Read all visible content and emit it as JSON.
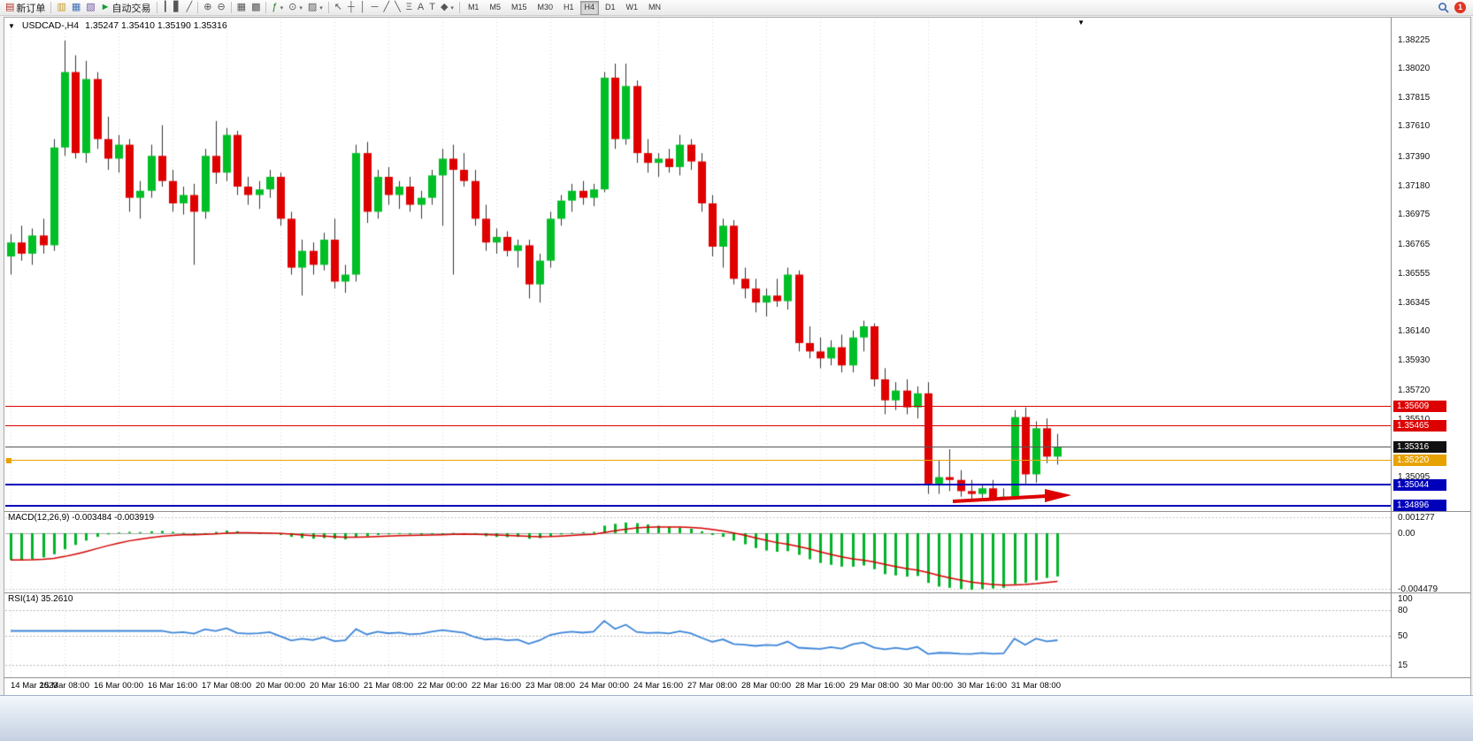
{
  "toolbar": {
    "groups": [
      {
        "items": [
          {
            "name": "new-order-button",
            "glyph": "▤",
            "color": "#b03020",
            "label": "新订单"
          }
        ]
      },
      {
        "items": [
          {
            "name": "charts-icon",
            "glyph": "▥",
            "color": "#c89a1e"
          },
          {
            "name": "market-watch-icon",
            "glyph": "▦",
            "color": "#3f6db4"
          },
          {
            "name": "navigator-icon",
            "glyph": "▧",
            "color": "#6f55a0"
          },
          {
            "name": "autotrading-button",
            "glyph": "►",
            "color": "#149a32",
            "label": "自动交易"
          }
        ]
      },
      {
        "items": [
          {
            "name": "bar-chart-icon",
            "glyph": "┃"
          },
          {
            "name": "candlestick-chart-icon",
            "glyph": "▋"
          },
          {
            "name": "line-chart-icon",
            "glyph": "╱"
          }
        ]
      },
      {
        "items": [
          {
            "name": "zoom-in-icon",
            "glyph": "⊕"
          },
          {
            "name": "zoom-out-icon",
            "glyph": "⊖"
          }
        ]
      },
      {
        "items": [
          {
            "name": "tile-windows-icon",
            "glyph": "▦"
          },
          {
            "name": "cascade-windows-icon",
            "glyph": "▩"
          }
        ]
      },
      {
        "items": [
          {
            "name": "indicators-button",
            "glyph": "ƒ",
            "color": "#1a7a1a",
            "dropdown": true
          },
          {
            "name": "periods-button",
            "glyph": "⊙",
            "dropdown": true
          },
          {
            "name": "templates-button",
            "glyph": "▨",
            "dropdown": true
          }
        ]
      },
      {
        "items": [
          {
            "name": "cursor-tool-icon",
            "glyph": "↖"
          },
          {
            "name": "crosshair-tool-icon",
            "glyph": "┼"
          },
          {
            "name": "vertical-line-tool-icon",
            "glyph": "│"
          },
          {
            "name": "horizontal-line-tool-icon",
            "glyph": "─"
          },
          {
            "name": "trendline-tool-icon",
            "glyph": "╱"
          },
          {
            "name": "channel-tool-icon",
            "glyph": "╲"
          },
          {
            "name": "fibonacci-tool-icon",
            "glyph": "Ξ"
          },
          {
            "name": "text-tool-icon",
            "glyph": "A"
          },
          {
            "name": "label-tool-icon",
            "glyph": "T"
          },
          {
            "name": "shapes-tool-button",
            "glyph": "◆",
            "dropdown": true
          }
        ]
      }
    ],
    "timeframes": {
      "items": [
        "M1",
        "M5",
        "M15",
        "M30",
        "H1",
        "H4",
        "D1",
        "W1",
        "MN"
      ],
      "active": "H4"
    },
    "right_items": [
      {
        "name": "search-icon"
      },
      {
        "name": "community-notification-badge",
        "label": "1",
        "color": "#e03424"
      }
    ]
  },
  "chart": {
    "symbol_period": "USDCAD-,H4",
    "ohlc": "1.35247 1.35410 1.35190 1.35316",
    "markers": {
      "one_click": "▼",
      "shift": "▼"
    }
  },
  "indicators": {
    "macd": {
      "label": "MACD(12,26,9) -0.003484 -0.003919"
    },
    "rsi": {
      "label": "RSI(14) 35.2610"
    }
  },
  "chart_data": {
    "type": "candlestick",
    "symbol": "USDCAD",
    "timeframe": "H4",
    "ohlc_display": [
      1.35247,
      1.3541,
      1.3519,
      1.35316
    ],
    "colors": {
      "up": "#00bf26",
      "down": "#df0000",
      "wick": "#333333",
      "grid": "#d9d9d9",
      "bg": "#ffffff"
    },
    "price_axis": {
      "ylim": [
        1.34857,
        1.38383
      ],
      "ticks": [
        1.38225,
        1.3802,
        1.37815,
        1.3761,
        1.3739,
        1.3718,
        1.36975,
        1.36765,
        1.36555,
        1.36345,
        1.3614,
        1.3593,
        1.3572,
        1.3551,
        1.35095
      ]
    },
    "levels": [
      {
        "price": 1.35609,
        "label": "1.35609",
        "color": "#dd0000",
        "badge": "#dd0000",
        "thick": 1
      },
      {
        "price": 1.35465,
        "label": "1.35465",
        "color": "#dd0000",
        "badge": "#dd0000",
        "thick": 1
      },
      {
        "price": 1.35316,
        "label": "1.35316",
        "color": "#555555",
        "badge": "#111111",
        "thick": 1
      },
      {
        "price": 1.3522,
        "label": "1.35220",
        "color": "#e8a200",
        "badge": "#e8a200",
        "thick": 1,
        "marker": true
      },
      {
        "price": 1.35044,
        "label": "1.35044",
        "color": "#0000bb",
        "badge": "#0000bb",
        "thick": 2
      },
      {
        "price": 1.34896,
        "label": "1.34896",
        "color": "#0000bb",
        "badge": "#0000bb",
        "thick": 2
      }
    ],
    "arrow": {
      "color": "#dd0000"
    },
    "time_labels": [
      "14 Mar 2023",
      "15 Mar 08:00",
      "16 Mar 00:00",
      "16 Mar 16:00",
      "17 Mar 08:00",
      "20 Mar 00:00",
      "20 Mar 16:00",
      "21 Mar 08:00",
      "22 Mar 00:00",
      "22 Mar 16:00",
      "23 Mar 08:00",
      "24 Mar 00:00",
      "24 Mar 16:00",
      "27 Mar 08:00",
      "28 Mar 00:00",
      "28 Mar 16:00",
      "29 Mar 08:00",
      "30 Mar 00:00",
      "30 Mar 16:00",
      "31 Mar 08:00"
    ],
    "candles": [
      [
        1.3668,
        1.3684,
        1.3655,
        1.3678
      ],
      [
        1.3678,
        1.369,
        1.3665,
        1.367
      ],
      [
        1.367,
        1.3688,
        1.3662,
        1.3683
      ],
      [
        1.3683,
        1.3695,
        1.367,
        1.3676
      ],
      [
        1.3676,
        1.3752,
        1.3672,
        1.3746
      ],
      [
        1.3746,
        1.38225,
        1.374,
        1.38
      ],
      [
        1.38,
        1.3812,
        1.3738,
        1.3742
      ],
      [
        1.3742,
        1.3808,
        1.3735,
        1.3795
      ],
      [
        1.3795,
        1.38,
        1.3745,
        1.3752
      ],
      [
        1.3752,
        1.3768,
        1.373,
        1.3738
      ],
      [
        1.3738,
        1.3755,
        1.3728,
        1.3748
      ],
      [
        1.3748,
        1.3752,
        1.37,
        1.371
      ],
      [
        1.371,
        1.3722,
        1.3695,
        1.3715
      ],
      [
        1.3715,
        1.3748,
        1.371,
        1.374
      ],
      [
        1.374,
        1.3762,
        1.3718,
        1.3722
      ],
      [
        1.3722,
        1.373,
        1.37,
        1.3706
      ],
      [
        1.3706,
        1.3718,
        1.3698,
        1.3712
      ],
      [
        1.3712,
        1.372,
        1.3662,
        1.37
      ],
      [
        1.37,
        1.3745,
        1.3695,
        1.374
      ],
      [
        1.374,
        1.3765,
        1.372,
        1.3728
      ],
      [
        1.3728,
        1.376,
        1.3722,
        1.3755
      ],
      [
        1.3755,
        1.3758,
        1.3712,
        1.3718
      ],
      [
        1.3718,
        1.3725,
        1.3705,
        1.3712
      ],
      [
        1.3712,
        1.3722,
        1.3702,
        1.3716
      ],
      [
        1.3716,
        1.373,
        1.371,
        1.3725
      ],
      [
        1.3725,
        1.3728,
        1.369,
        1.3695
      ],
      [
        1.3695,
        1.37,
        1.3655,
        1.366
      ],
      [
        1.366,
        1.368,
        1.364,
        1.3672
      ],
      [
        1.3672,
        1.3678,
        1.3655,
        1.3662
      ],
      [
        1.3662,
        1.3685,
        1.3658,
        1.368
      ],
      [
        1.368,
        1.3695,
        1.3645,
        1.365
      ],
      [
        1.365,
        1.3662,
        1.3642,
        1.3655
      ],
      [
        1.3655,
        1.3748,
        1.365,
        1.3742
      ],
      [
        1.3742,
        1.375,
        1.3692,
        1.37
      ],
      [
        1.37,
        1.373,
        1.3695,
        1.3725
      ],
      [
        1.3725,
        1.3732,
        1.3705,
        1.3712
      ],
      [
        1.3712,
        1.3722,
        1.3702,
        1.3718
      ],
      [
        1.3718,
        1.3725,
        1.37,
        1.3705
      ],
      [
        1.3705,
        1.3715,
        1.3695,
        1.371
      ],
      [
        1.371,
        1.373,
        1.3705,
        1.3726
      ],
      [
        1.3726,
        1.3745,
        1.369,
        1.3738
      ],
      [
        1.3738,
        1.3748,
        1.3655,
        1.373
      ],
      [
        1.373,
        1.3742,
        1.3718,
        1.3722
      ],
      [
        1.3722,
        1.373,
        1.369,
        1.3695
      ],
      [
        1.3695,
        1.3705,
        1.3672,
        1.3678
      ],
      [
        1.3678,
        1.3688,
        1.367,
        1.3682
      ],
      [
        1.3682,
        1.3686,
        1.3668,
        1.3672
      ],
      [
        1.3672,
        1.368,
        1.366,
        1.3676
      ],
      [
        1.3676,
        1.368,
        1.3638,
        1.3648
      ],
      [
        1.3648,
        1.367,
        1.3635,
        1.3665
      ],
      [
        1.3665,
        1.37,
        1.366,
        1.3695
      ],
      [
        1.3695,
        1.3712,
        1.369,
        1.3708
      ],
      [
        1.3708,
        1.372,
        1.37,
        1.3715
      ],
      [
        1.3715,
        1.3722,
        1.3705,
        1.371
      ],
      [
        1.371,
        1.372,
        1.3704,
        1.3716
      ],
      [
        1.3716,
        1.38,
        1.3714,
        1.3796
      ],
      [
        1.3796,
        1.3806,
        1.3745,
        1.3752
      ],
      [
        1.3752,
        1.3806,
        1.3748,
        1.379
      ],
      [
        1.379,
        1.3794,
        1.3735,
        1.3742
      ],
      [
        1.3742,
        1.3752,
        1.3728,
        1.3735
      ],
      [
        1.3735,
        1.3742,
        1.3725,
        1.3738
      ],
      [
        1.3738,
        1.3745,
        1.3728,
        1.3732
      ],
      [
        1.3732,
        1.3755,
        1.3726,
        1.3748
      ],
      [
        1.3748,
        1.3752,
        1.373,
        1.3736
      ],
      [
        1.3736,
        1.3742,
        1.37,
        1.3706
      ],
      [
        1.3706,
        1.3712,
        1.3668,
        1.3675
      ],
      [
        1.3675,
        1.3695,
        1.366,
        1.369
      ],
      [
        1.369,
        1.3694,
        1.3648,
        1.3652
      ],
      [
        1.3652,
        1.366,
        1.3638,
        1.3645
      ],
      [
        1.3645,
        1.3652,
        1.3628,
        1.3635
      ],
      [
        1.3635,
        1.3645,
        1.3625,
        1.364
      ],
      [
        1.364,
        1.3652,
        1.3632,
        1.3636
      ],
      [
        1.3636,
        1.366,
        1.363,
        1.3655
      ],
      [
        1.3655,
        1.3658,
        1.36,
        1.3606
      ],
      [
        1.3606,
        1.3618,
        1.3595,
        1.36
      ],
      [
        1.36,
        1.361,
        1.3588,
        1.3595
      ],
      [
        1.3595,
        1.3608,
        1.359,
        1.3603
      ],
      [
        1.3603,
        1.3612,
        1.3585,
        1.359
      ],
      [
        1.359,
        1.3615,
        1.3585,
        1.361
      ],
      [
        1.361,
        1.3622,
        1.36,
        1.3618
      ],
      [
        1.3618,
        1.362,
        1.3575,
        1.358
      ],
      [
        1.358,
        1.3588,
        1.3555,
        1.3565
      ],
      [
        1.3565,
        1.3578,
        1.3558,
        1.3572
      ],
      [
        1.3572,
        1.358,
        1.3555,
        1.356
      ],
      [
        1.356,
        1.3575,
        1.3552,
        1.357
      ],
      [
        1.357,
        1.3578,
        1.3498,
        1.3505
      ],
      [
        1.3505,
        1.3522,
        1.3498,
        1.351
      ],
      [
        1.351,
        1.353,
        1.35,
        1.3508
      ],
      [
        1.3508,
        1.3515,
        1.3496,
        1.35
      ],
      [
        1.35,
        1.3508,
        1.3494,
        1.3498
      ],
      [
        1.3498,
        1.3505,
        1.3495,
        1.3502
      ],
      [
        1.3502,
        1.3508,
        1.3493,
        1.3495
      ],
      [
        1.3495,
        1.3502,
        1.3494,
        1.3496
      ],
      [
        1.3496,
        1.3558,
        1.3494,
        1.3553
      ],
      [
        1.3553,
        1.356,
        1.3505,
        1.3512
      ],
      [
        1.3512,
        1.355,
        1.3506,
        1.3545
      ],
      [
        1.3545,
        1.3552,
        1.352,
        1.35247
      ],
      [
        1.35247,
        1.3541,
        1.3519,
        1.35316
      ]
    ],
    "macd": {
      "params": [
        12,
        26,
        9
      ],
      "current": [
        -0.003484,
        -0.003919
      ],
      "ylim": [
        -0.0047,
        0.0017
      ],
      "ticks": [
        {
          "v": 0.001277,
          "t": "0.001277"
        },
        {
          "v": 0,
          "t": "0.00"
        },
        {
          "v": -0.004479,
          "t": "-0.004479"
        }
      ],
      "colors": {
        "hist": "#00b327",
        "signal": "#d40000"
      },
      "hist": [
        -0.00215,
        -0.0022,
        -0.0021,
        -0.00195,
        -0.0017,
        -0.0013,
        -0.00095,
        -0.0006,
        -0.0003,
        -0.0001,
        5e-05,
        0.0001,
        8e-05,
        0.00015,
        0.00018,
        0.0001,
        2e-05,
        -8e-05,
        0.0,
        0.0001,
        0.0002,
        0.00015,
        5e-05,
        -5e-05,
        -5e-05,
        -0.00015,
        -0.0003,
        -0.0004,
        -0.00045,
        -0.0004,
        -0.00045,
        -0.0005,
        -0.0003,
        -0.00025,
        -0.00015,
        -0.0001,
        -8e-05,
        -0.0001,
        -0.00012,
        -8e-05,
        0.0,
        2e-05,
        -2e-05,
        -0.00012,
        -0.00025,
        -0.0003,
        -0.00032,
        -0.0003,
        -0.00045,
        -0.0004,
        -0.00025,
        -0.0001,
        2e-05,
        8e-05,
        0.0001,
        0.0006,
        0.00075,
        0.00085,
        0.0008,
        0.0007,
        0.0006,
        0.0005,
        0.00045,
        0.00035,
        0.00015,
        -0.00015,
        -0.0003,
        -0.0006,
        -0.0009,
        -0.0012,
        -0.0014,
        -0.0015,
        -0.00145,
        -0.00175,
        -0.0021,
        -0.0024,
        -0.00255,
        -0.0027,
        -0.0027,
        -0.0026,
        -0.0029,
        -0.0033,
        -0.0034,
        -0.0035,
        -0.00345,
        -0.004,
        -0.0043,
        -0.0044,
        -0.0045,
        -0.00455,
        -0.0045,
        -0.00445,
        -0.0044,
        -0.0041,
        -0.004,
        -0.0038,
        -0.0036,
        -0.00348
      ]
    },
    "rsi": {
      "period": 14,
      "value": 35.261,
      "ylim": [
        0,
        100
      ],
      "levels": [
        80,
        50,
        15
      ],
      "ticks": [
        {
          "v": 100,
          "t": "100"
        },
        {
          "v": 80,
          "t": "80"
        },
        {
          "v": 50,
          "t": "50"
        },
        {
          "v": 15,
          "t": "15"
        }
      ],
      "color": "#3d85d8"
    }
  }
}
